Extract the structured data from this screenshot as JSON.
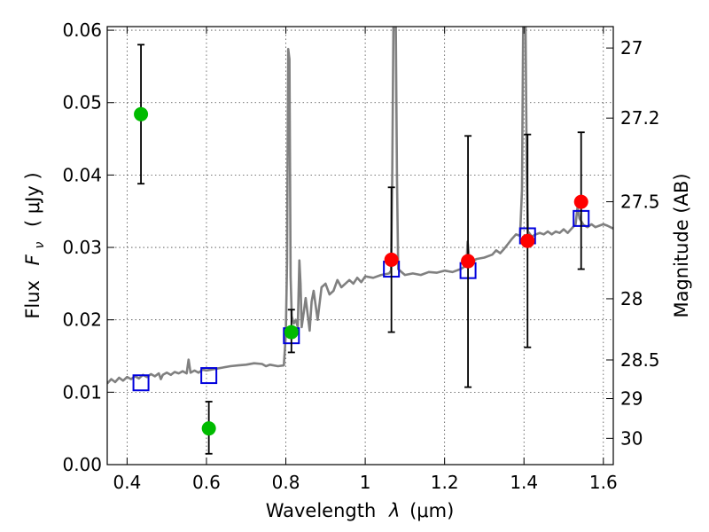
{
  "chart_data": {
    "type": "scatter",
    "xlabel_prefix": "Wavelength",
    "xlabel_math": "λ",
    "xlabel_unit": "(μm)",
    "ylabel_prefix": "Flux",
    "ylabel_math_main": "F",
    "ylabel_math_sub": "ν",
    "ylabel_unit": "( μJy )",
    "y2label": "Magnitude (AB)",
    "xlim": [
      0.35,
      1.625
    ],
    "ylim": [
      0.0,
      0.0605
    ],
    "grid": true,
    "x_ticks": [
      {
        "value": 0.4,
        "label": "0.4"
      },
      {
        "value": 0.6,
        "label": "0.6"
      },
      {
        "value": 0.8,
        "label": "0.8"
      },
      {
        "value": 1.0,
        "label": "1"
      },
      {
        "value": 1.2,
        "label": "1.2"
      },
      {
        "value": 1.4,
        "label": "1.4"
      },
      {
        "value": 1.6,
        "label": "1.6"
      }
    ],
    "y_ticks": [
      {
        "value": 0.0,
        "label": "0.00"
      },
      {
        "value": 0.01,
        "label": "0.01"
      },
      {
        "value": 0.02,
        "label": "0.02"
      },
      {
        "value": 0.03,
        "label": "0.03"
      },
      {
        "value": 0.04,
        "label": "0.04"
      },
      {
        "value": 0.05,
        "label": "0.05"
      },
      {
        "value": 0.06,
        "label": "0.06"
      }
    ],
    "mag_ticks": [
      {
        "value": 27.0,
        "label": "27"
      },
      {
        "value": 27.2,
        "label": "27.2"
      },
      {
        "value": 27.5,
        "label": "27.5"
      },
      {
        "value": 28.0,
        "label": "28"
      },
      {
        "value": 28.5,
        "label": "28.5"
      },
      {
        "value": 29.0,
        "label": "29"
      },
      {
        "value": 30.0,
        "label": "30"
      }
    ],
    "series": [
      {
        "role": "observed_optical",
        "color": "#00bb00",
        "marker": "circle",
        "points": [
          {
            "x": 0.435,
            "y": 0.0484,
            "yerr_low": 0.0388,
            "yerr_high": 0.058
          },
          {
            "x": 0.606,
            "y": 0.005,
            "yerr_low": 0.0015,
            "yerr_high": 0.0087
          },
          {
            "x": 0.814,
            "y": 0.0183,
            "yerr_low": 0.0155,
            "yerr_high": 0.0214
          }
        ]
      },
      {
        "role": "observed_nir",
        "color": "#ff0000",
        "marker": "circle",
        "points": [
          {
            "x": 1.066,
            "y": 0.0283,
            "yerr_low": 0.0183,
            "yerr_high": 0.0383
          },
          {
            "x": 1.259,
            "y": 0.0281,
            "yerr_low": 0.0107,
            "yerr_high": 0.0454
          },
          {
            "x": 1.409,
            "y": 0.0309,
            "yerr_low": 0.0162,
            "yerr_high": 0.0456
          },
          {
            "x": 1.544,
            "y": 0.0363,
            "yerr_low": 0.027,
            "yerr_high": 0.0459
          }
        ]
      },
      {
        "role": "model_photometry",
        "color": "#0000dd",
        "marker": "open-square",
        "points": [
          {
            "x": 0.435,
            "y": 0.0113
          },
          {
            "x": 0.606,
            "y": 0.0123
          },
          {
            "x": 0.814,
            "y": 0.0178
          },
          {
            "x": 1.066,
            "y": 0.027
          },
          {
            "x": 1.259,
            "y": 0.0268
          },
          {
            "x": 1.409,
            "y": 0.0316
          },
          {
            "x": 1.544,
            "y": 0.034
          }
        ]
      },
      {
        "role": "model_spectrum",
        "color": "#808080",
        "line": true,
        "points": [
          [
            0.35,
            0.0112
          ],
          [
            0.36,
            0.0118
          ],
          [
            0.37,
            0.0114
          ],
          [
            0.38,
            0.012
          ],
          [
            0.39,
            0.0116
          ],
          [
            0.4,
            0.0121
          ],
          [
            0.41,
            0.0118
          ],
          [
            0.42,
            0.0122
          ],
          [
            0.43,
            0.0119
          ],
          [
            0.44,
            0.0124
          ],
          [
            0.45,
            0.0121
          ],
          [
            0.46,
            0.0125
          ],
          [
            0.47,
            0.0122
          ],
          [
            0.48,
            0.0126
          ],
          [
            0.485,
            0.0118
          ],
          [
            0.49,
            0.0124
          ],
          [
            0.5,
            0.0127
          ],
          [
            0.51,
            0.0124
          ],
          [
            0.52,
            0.0128
          ],
          [
            0.53,
            0.0126
          ],
          [
            0.54,
            0.0129
          ],
          [
            0.55,
            0.0126
          ],
          [
            0.555,
            0.0145
          ],
          [
            0.56,
            0.0127
          ],
          [
            0.57,
            0.013
          ],
          [
            0.58,
            0.0127
          ],
          [
            0.59,
            0.0131
          ],
          [
            0.6,
            0.013
          ],
          [
            0.62,
            0.0132
          ],
          [
            0.64,
            0.0134
          ],
          [
            0.66,
            0.0136
          ],
          [
            0.68,
            0.0137
          ],
          [
            0.7,
            0.0138
          ],
          [
            0.72,
            0.014
          ],
          [
            0.74,
            0.0139
          ],
          [
            0.75,
            0.0136
          ],
          [
            0.76,
            0.0138
          ],
          [
            0.78,
            0.0136
          ],
          [
            0.795,
            0.0137
          ],
          [
            0.8,
            0.018
          ],
          [
            0.803,
            0.028
          ],
          [
            0.806,
            0.0574
          ],
          [
            0.809,
            0.056
          ],
          [
            0.812,
            0.026
          ],
          [
            0.815,
            0.0205
          ],
          [
            0.82,
            0.0195
          ],
          [
            0.825,
            0.02
          ],
          [
            0.83,
            0.019
          ],
          [
            0.834,
            0.0282
          ],
          [
            0.837,
            0.025
          ],
          [
            0.84,
            0.019
          ],
          [
            0.845,
            0.021
          ],
          [
            0.85,
            0.023
          ],
          [
            0.86,
            0.0185
          ],
          [
            0.865,
            0.0225
          ],
          [
            0.87,
            0.024
          ],
          [
            0.88,
            0.02
          ],
          [
            0.89,
            0.0245
          ],
          [
            0.9,
            0.025
          ],
          [
            0.91,
            0.0235
          ],
          [
            0.92,
            0.024
          ],
          [
            0.93,
            0.0255
          ],
          [
            0.94,
            0.0245
          ],
          [
            0.95,
            0.025
          ],
          [
            0.96,
            0.0255
          ],
          [
            0.97,
            0.025
          ],
          [
            0.98,
            0.0258
          ],
          [
            0.99,
            0.0252
          ],
          [
            1.0,
            0.026
          ],
          [
            1.02,
            0.0258
          ],
          [
            1.04,
            0.0262
          ],
          [
            1.06,
            0.0264
          ],
          [
            1.065,
            0.0268
          ],
          [
            1.068,
            0.04
          ],
          [
            1.071,
            0.0605
          ],
          [
            1.077,
            0.0605
          ],
          [
            1.08,
            0.04
          ],
          [
            1.083,
            0.027
          ],
          [
            1.1,
            0.0262
          ],
          [
            1.12,
            0.0264
          ],
          [
            1.14,
            0.0262
          ],
          [
            1.16,
            0.0266
          ],
          [
            1.18,
            0.0265
          ],
          [
            1.2,
            0.0268
          ],
          [
            1.22,
            0.0266
          ],
          [
            1.24,
            0.027
          ],
          [
            1.255,
            0.0275
          ],
          [
            1.258,
            0.0308
          ],
          [
            1.262,
            0.0285
          ],
          [
            1.27,
            0.028
          ],
          [
            1.28,
            0.0284
          ],
          [
            1.3,
            0.0286
          ],
          [
            1.32,
            0.029
          ],
          [
            1.33,
            0.0296
          ],
          [
            1.34,
            0.0292
          ],
          [
            1.35,
            0.0298
          ],
          [
            1.36,
            0.0305
          ],
          [
            1.37,
            0.0312
          ],
          [
            1.38,
            0.0318
          ],
          [
            1.39,
            0.0316
          ],
          [
            1.395,
            0.038
          ],
          [
            1.398,
            0.0605
          ],
          [
            1.404,
            0.0605
          ],
          [
            1.407,
            0.04
          ],
          [
            1.41,
            0.0322
          ],
          [
            1.42,
            0.0315
          ],
          [
            1.43,
            0.0318
          ],
          [
            1.44,
            0.032
          ],
          [
            1.45,
            0.0318
          ],
          [
            1.46,
            0.0322
          ],
          [
            1.47,
            0.0318
          ],
          [
            1.48,
            0.0322
          ],
          [
            1.49,
            0.032
          ],
          [
            1.5,
            0.0325
          ],
          [
            1.51,
            0.032
          ],
          [
            1.52,
            0.0326
          ],
          [
            1.53,
            0.0332
          ],
          [
            1.535,
            0.0356
          ],
          [
            1.54,
            0.034
          ],
          [
            1.55,
            0.0331
          ],
          [
            1.56,
            0.0328
          ],
          [
            1.57,
            0.0332
          ],
          [
            1.58,
            0.0328
          ],
          [
            1.59,
            0.033
          ],
          [
            1.6,
            0.0332
          ],
          [
            1.61,
            0.033
          ],
          [
            1.625,
            0.0326
          ]
        ]
      }
    ]
  }
}
